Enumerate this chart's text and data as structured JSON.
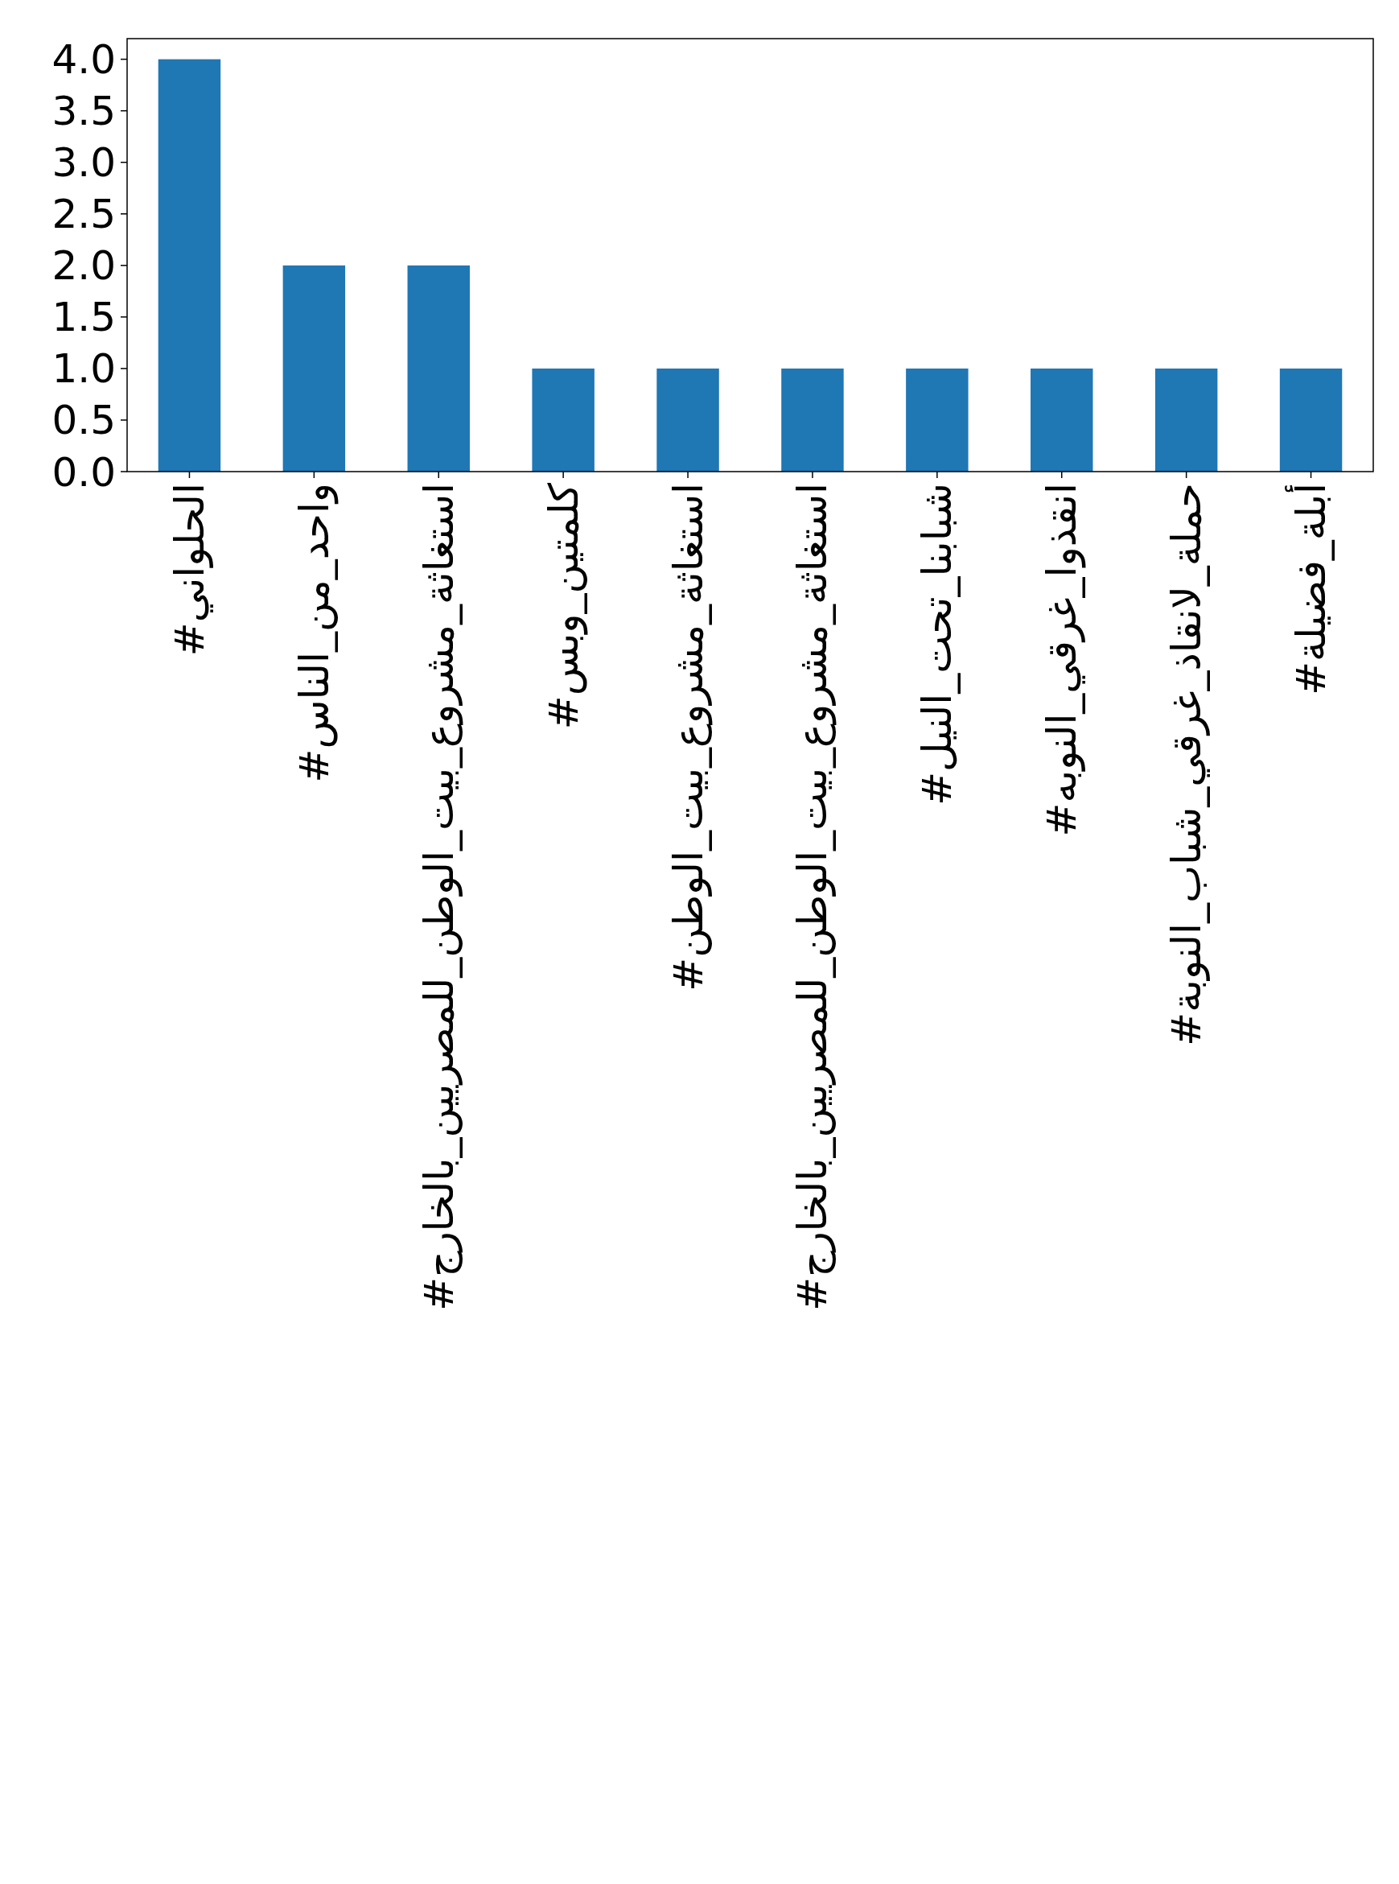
{
  "chart_data": {
    "type": "bar",
    "categories": [
      "#الحلواني",
      "#واحد_من_الناس",
      "#استغاثة_مشروع_بيت_الوطن_للمصريين_بالخارج",
      "#كلمتين_وبس",
      "#استغاثة_مشروع_بيت_الوطن",
      "#استغاثة_مشروع_بيت_الوطن_للمصريين_بالخارج",
      "#شبابنا_تحت_النيل",
      "#انقذوا_غرقي_النوبه",
      "#حملة_لانقاذ_غرقي_شباب_النوبة",
      "#أبلة_فضيلة"
    ],
    "values": [
      4,
      2,
      2,
      1,
      1,
      1,
      1,
      1,
      1,
      1
    ],
    "color": "#1f77b4",
    "ylim": [
      0,
      4.2
    ],
    "yticks": [
      {
        "value": 0,
        "label": "0.0"
      },
      {
        "value": 0.5,
        "label": "0.5"
      },
      {
        "value": 1,
        "label": "1.0"
      },
      {
        "value": 1.5,
        "label": "1.5"
      },
      {
        "value": 2,
        "label": "2.0"
      },
      {
        "value": 2.5,
        "label": "2.5"
      },
      {
        "value": 3,
        "label": "3.0"
      },
      {
        "value": 3.5,
        "label": "3.5"
      },
      {
        "value": 4,
        "label": "4.0"
      }
    ],
    "grid": false
  }
}
